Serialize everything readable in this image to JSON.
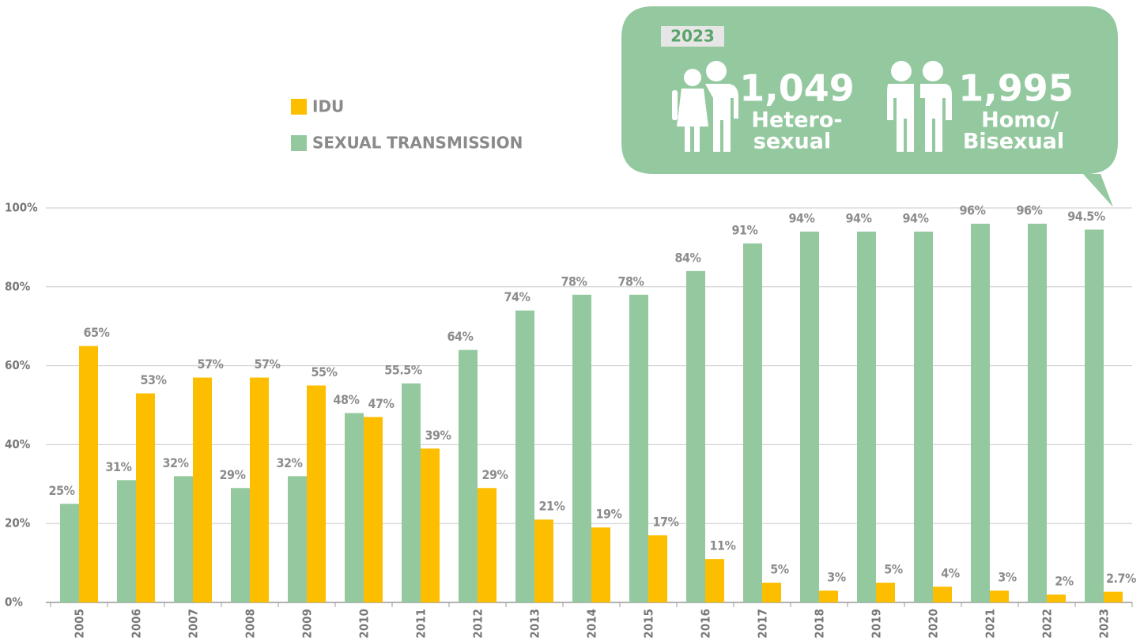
{
  "chart_data": {
    "type": "bar",
    "categories": [
      "2005",
      "2006",
      "2007",
      "2008",
      "2009",
      "2010",
      "2011",
      "2012",
      "2013",
      "2014",
      "2015",
      "2016",
      "2017",
      "2018",
      "2019",
      "2020",
      "2021",
      "2022",
      "2023"
    ],
    "series": [
      {
        "name": "SEXUAL TRANSMISSION",
        "color": "#94c9a0",
        "values": [
          25,
          31,
          32,
          29,
          32,
          48,
          55.5,
          64,
          74,
          78,
          78,
          84,
          91,
          94,
          94,
          94,
          96,
          96,
          94.5
        ],
        "value_labels": [
          "25%",
          "31%",
          "32%",
          "29%",
          "32%",
          "48%",
          "55.5%",
          "64%",
          "74%",
          "78%",
          "78%",
          "84%",
          "91%",
          "94%",
          "94%",
          "94%",
          "96%",
          "96%",
          "94.5%"
        ]
      },
      {
        "name": "IDU",
        "color": "#fdbe00",
        "values": [
          65,
          53,
          57,
          57,
          55,
          47,
          39,
          29,
          21,
          19,
          17,
          11,
          5,
          3,
          5,
          4,
          3,
          2,
          2.7
        ],
        "value_labels": [
          "65%",
          "53%",
          "57%",
          "57%",
          "55%",
          "47%",
          "39%",
          "29%",
          "21%",
          "19%",
          "17%",
          "11%",
          "5%",
          "3%",
          "5%",
          "4%",
          "3%",
          "2%",
          "2.7%"
        ]
      }
    ],
    "ylim": [
      0,
      100
    ],
    "yticks": [
      {
        "value": 0,
        "label": "0%"
      },
      {
        "value": 20,
        "label": "20%"
      },
      {
        "value": 40,
        "label": "40%"
      },
      {
        "value": 60,
        "label": "60%"
      },
      {
        "value": 80,
        "label": "80%"
      },
      {
        "value": 100,
        "label": "100%"
      }
    ],
    "grid": true,
    "callout": {
      "year": "2023",
      "items": [
        {
          "value": "1,049",
          "lines": [
            "Hetero-",
            "sexual"
          ]
        },
        {
          "value": "1,995",
          "lines": [
            "Homo/",
            "Bisexual"
          ]
        }
      ]
    }
  }
}
